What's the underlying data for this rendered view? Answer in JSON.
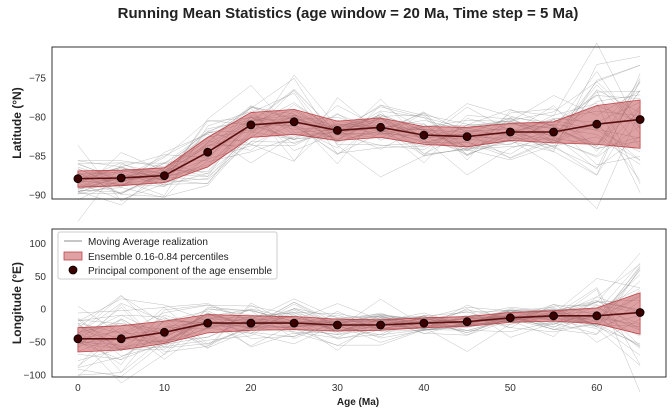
{
  "figure": {
    "title": "Running Mean Statistics (age window = 20 Ma, Time step = 5 Ma)",
    "xlabel": "Age (Ma)",
    "band_color": "#c0454a",
    "line_color": "#5a1010",
    "realization_color": "#8c8c8c",
    "point_color": "#3b0000"
  },
  "legend": {
    "location": "upper-left of bottom panel",
    "items": [
      {
        "label": "Moving Average realization",
        "marker": "line"
      },
      {
        "label": "Ensemble 0.16-0.84 percentiles",
        "marker": "band"
      },
      {
        "label": "Principal component of the age ensemble",
        "marker": "dot"
      }
    ]
  },
  "chart_data": [
    {
      "type": "line",
      "ylabel": "Latitude (°N)",
      "xlim": [
        -3,
        68
      ],
      "ylim": [
        -90.5,
        -71
      ],
      "yticks": [
        -90,
        -85,
        -80,
        -75
      ],
      "xticks": [
        0,
        10,
        20,
        30,
        40,
        50,
        60
      ],
      "show_xticklabels": false,
      "x": [
        0,
        5,
        10,
        15,
        20,
        25,
        30,
        35,
        40,
        45,
        50,
        55,
        60,
        65
      ],
      "series": [
        {
          "values": [
            -87.9,
            -87.8,
            -87.5,
            -84.5,
            -81.0,
            -80.6,
            -81.7,
            -81.3,
            -82.3,
            -82.5,
            -81.9,
            -81.9,
            -80.9,
            -80.3
          ]
        }
      ],
      "band_lower": [
        -89.0,
        -88.8,
        -88.4,
        -86.4,
        -82.6,
        -82.2,
        -83.0,
        -82.6,
        -83.5,
        -83.8,
        -83.0,
        -83.3,
        -83.5,
        -84.0
      ],
      "band_upper": [
        -86.9,
        -86.8,
        -86.5,
        -82.6,
        -79.4,
        -79.0,
        -80.5,
        -80.1,
        -81.2,
        -81.3,
        -80.8,
        -80.6,
        -78.5,
        -77.8
      ]
    },
    {
      "type": "line",
      "ylabel": "Longitude (°E)",
      "xlabel": "Age (Ma)",
      "xlim": [
        -3,
        68
      ],
      "ylim": [
        -103,
        122
      ],
      "yticks": [
        -100,
        -50,
        0,
        50,
        100
      ],
      "xticks": [
        0,
        10,
        20,
        30,
        40,
        50,
        60
      ],
      "show_xticklabels": true,
      "x": [
        0,
        5,
        10,
        15,
        20,
        25,
        30,
        35,
        40,
        45,
        50,
        55,
        60,
        65
      ],
      "series": [
        {
          "values": [
            -45,
            -45,
            -35,
            -21,
            -21,
            -21,
            -24,
            -24,
            -21,
            -19,
            -13,
            -10,
            -10,
            -5
          ]
        }
      ],
      "band_lower": [
        -65,
        -62,
        -52,
        -36,
        -32,
        -31,
        -33,
        -32,
        -28,
        -26,
        -20,
        -18,
        -22,
        -38
      ],
      "band_upper": [
        -28,
        -25,
        -18,
        -8,
        -10,
        -11,
        -15,
        -16,
        -13,
        -11,
        -5,
        -2,
        2,
        25
      ]
    }
  ]
}
